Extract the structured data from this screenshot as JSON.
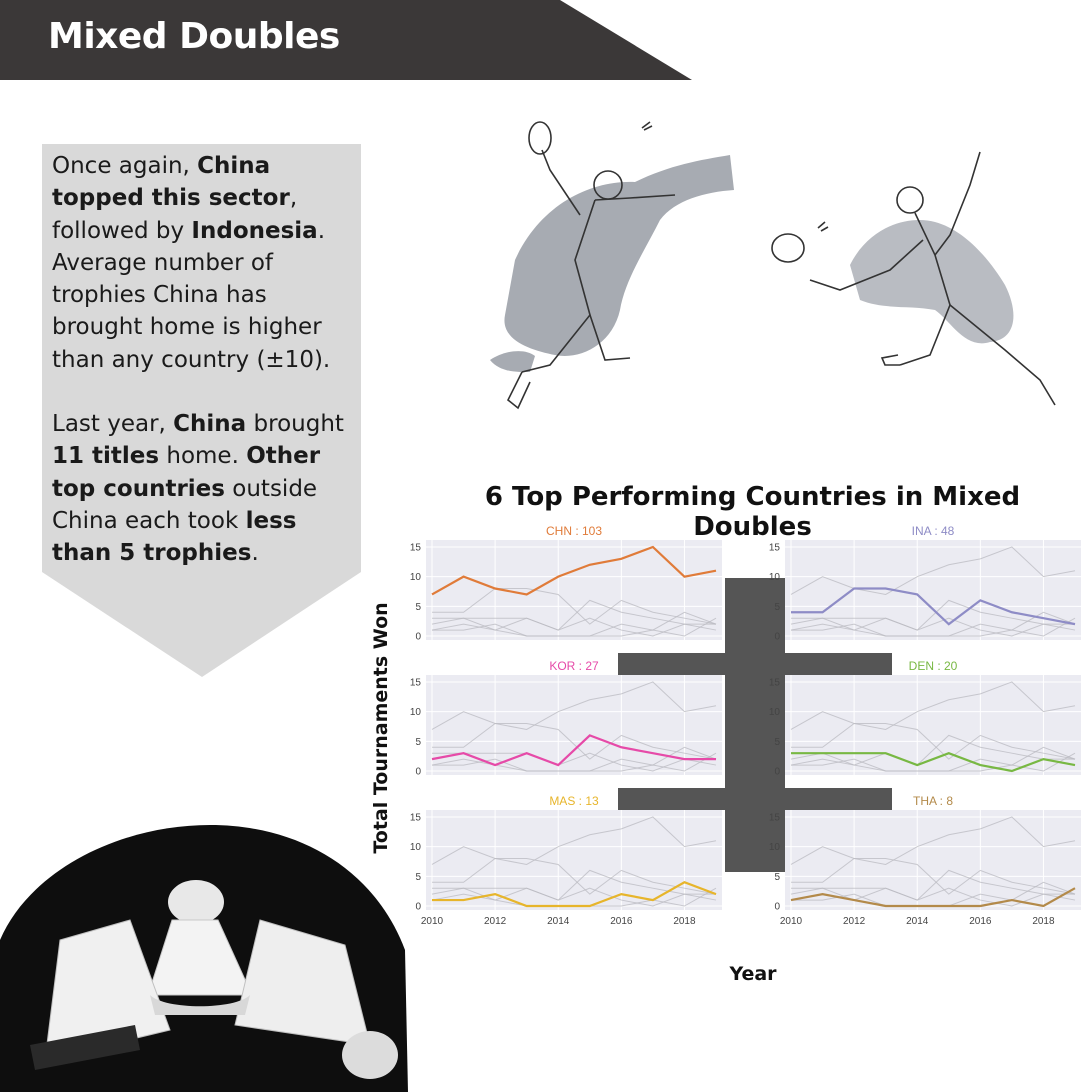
{
  "header": {
    "title": "Mixed Doubles"
  },
  "callout": {
    "p1": [
      {
        "t": "Once again, ",
        "b": false
      },
      {
        "t": "China topped this sector",
        "b": true
      },
      {
        "t": ", followed by ",
        "b": false
      },
      {
        "t": "Indonesia",
        "b": true
      },
      {
        "t": ". Average number of trophies China has brought home is higher than any country (±10).",
        "b": false
      }
    ],
    "p2": [
      {
        "t": "Last year, ",
        "b": false
      },
      {
        "t": "China",
        "b": true
      },
      {
        "t": " brought ",
        "b": false
      },
      {
        "t": "11 titles",
        "b": true
      },
      {
        "t": " home. ",
        "b": false
      },
      {
        "t": "Other top countries",
        "b": true
      },
      {
        "t": " outside China each took ",
        "b": false
      },
      {
        "t": "less than 5 trophies",
        "b": true
      },
      {
        "t": ".",
        "b": false
      }
    ]
  },
  "colors": {
    "header": "#3b3838",
    "callout": "#d9d9d9",
    "panel": "#ebebf2",
    "connector": "#555555"
  },
  "chart_data": {
    "type": "line",
    "title": "6 Top Performing Countries in Mixed Doubles",
    "xlabel": "Year",
    "ylabel": "Total Tournaments Won",
    "x": [
      2010,
      2011,
      2012,
      2013,
      2014,
      2015,
      2016,
      2017,
      2018,
      2019
    ],
    "xticks": [
      2010,
      2012,
      2014,
      2016,
      2018
    ],
    "yticks": [
      0,
      5,
      10,
      15
    ],
    "ylim": [
      0,
      15.5
    ],
    "grid": true,
    "series": [
      {
        "name": "CHN",
        "label": "CHN : 103",
        "color": "#e07b39",
        "values": [
          7,
          10,
          8,
          7,
          10,
          12,
          13,
          15,
          10,
          11
        ]
      },
      {
        "name": "INA",
        "label": "INA : 48",
        "color": "#8e8cc6",
        "values": [
          4,
          4,
          8,
          8,
          7,
          2,
          6,
          4,
          3,
          2
        ]
      },
      {
        "name": "KOR",
        "label": "KOR : 27",
        "color": "#e64aa8",
        "values": [
          2,
          3,
          1,
          3,
          1,
          6,
          4,
          3,
          2,
          2
        ]
      },
      {
        "name": "DEN",
        "label": "DEN : 20",
        "color": "#78b843",
        "values": [
          3,
          3,
          3,
          3,
          1,
          3,
          1,
          0,
          2,
          1
        ]
      },
      {
        "name": "MAS",
        "label": "MAS : 13",
        "color": "#e7b52b",
        "values": [
          1,
          1,
          2,
          0,
          0,
          0,
          2,
          1,
          4,
          2
        ]
      },
      {
        "name": "THA",
        "label": "THA : 8",
        "color": "#b38a4a",
        "values": [
          1,
          2,
          1,
          0,
          0,
          0,
          0,
          1,
          0,
          3
        ]
      }
    ]
  }
}
